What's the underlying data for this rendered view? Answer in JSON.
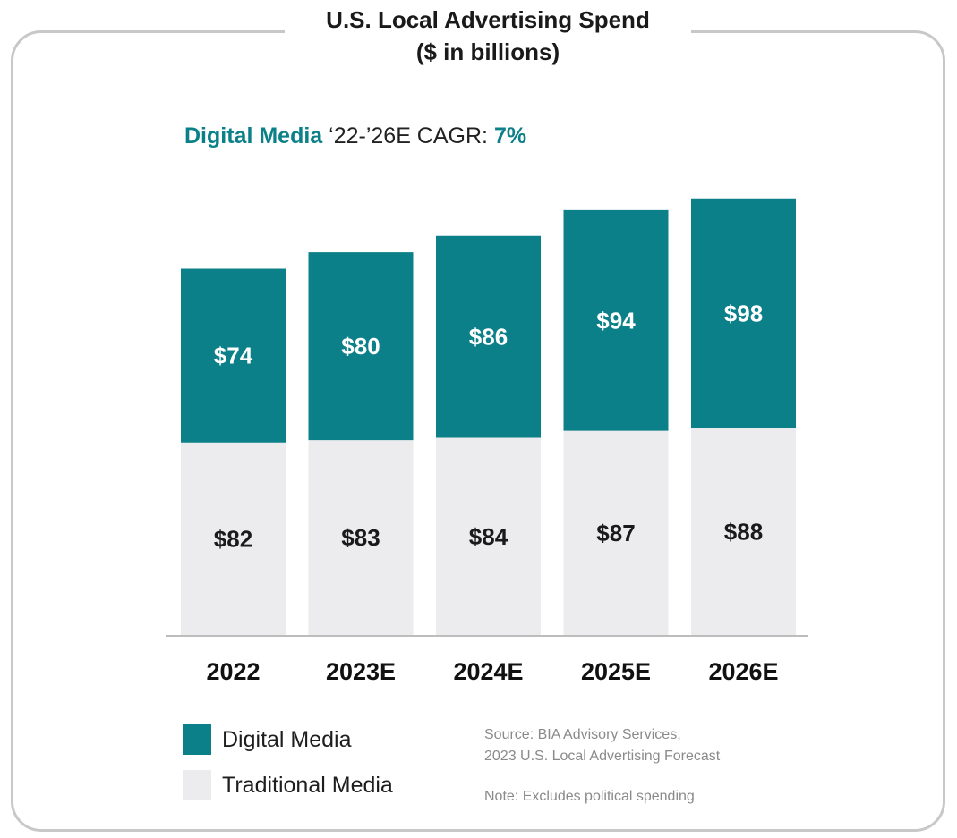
{
  "title_line1": "U.S. Local Advertising Spend",
  "title_line2": "($ in billions)",
  "cagr": {
    "series": "Digital Media",
    "text": "‘22-’26E CAGR:",
    "value": "7%"
  },
  "colors": {
    "digital": "#0b8088",
    "traditional": "#ececee",
    "axis": "#bdbdbd",
    "frame": "#c8c8c8"
  },
  "chart_data": {
    "type": "bar",
    "stacked": true,
    "categories": [
      "2022",
      "2023E",
      "2024E",
      "2025E",
      "2026E"
    ],
    "series": [
      {
        "name": "Traditional Media",
        "values": [
          82,
          83,
          84,
          87,
          88
        ],
        "labels": [
          "$82",
          "$83",
          "$84",
          "$87",
          "$88"
        ]
      },
      {
        "name": "Digital Media",
        "values": [
          74,
          80,
          86,
          94,
          98
        ],
        "labels": [
          "$74",
          "$80",
          "$86",
          "$94",
          "$98"
        ]
      }
    ],
    "title": "U.S. Local Advertising Spend",
    "subtitle": "($ in billions)",
    "xlabel": "",
    "ylabel": "",
    "grid": false,
    "legend_position": "bottom-left"
  },
  "legend": {
    "digital": "Digital Media",
    "traditional": "Traditional Media"
  },
  "source_line1": "Source: BIA Advisory Services,",
  "source_line2": "2023 U.S. Local Advertising Forecast",
  "note": "Note: Excludes political spending"
}
